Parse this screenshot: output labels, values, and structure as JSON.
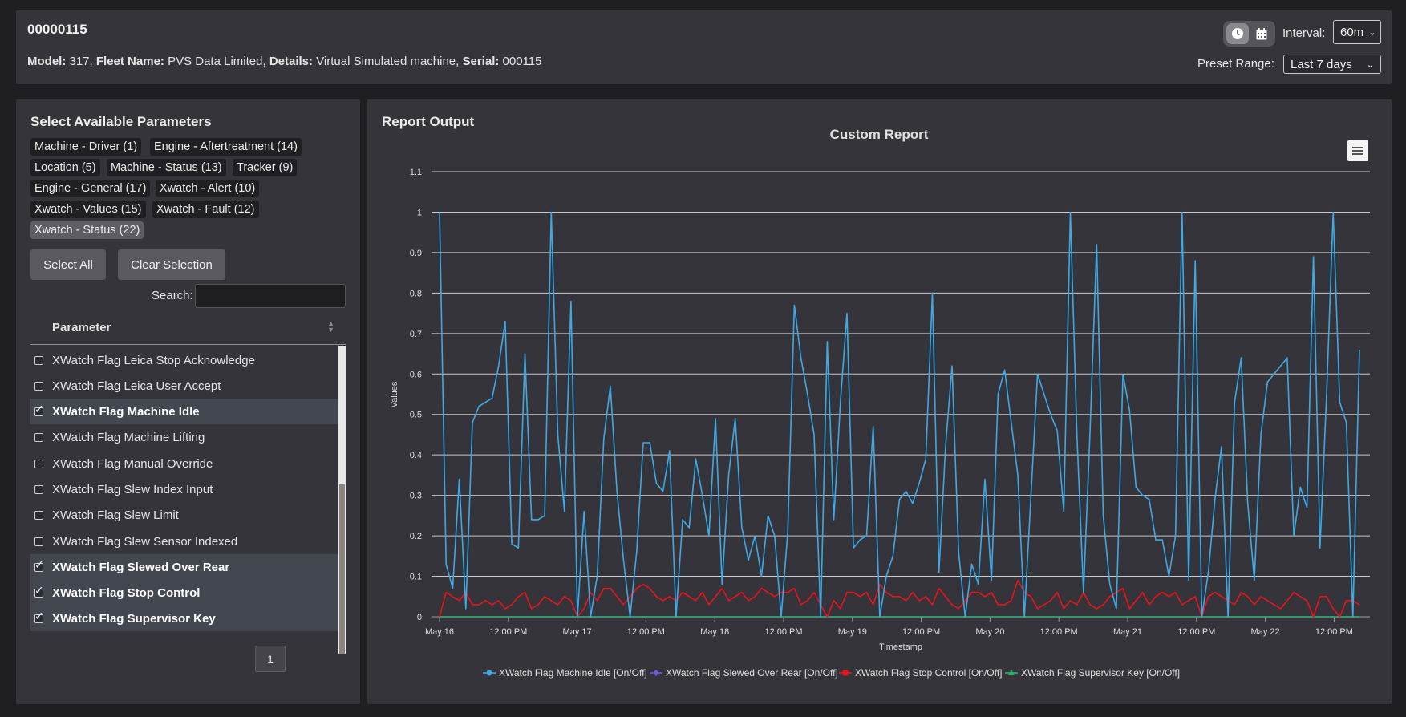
{
  "header": {
    "machine_id": "00000115",
    "model_label": "Model:",
    "model_value": "317,",
    "fleet_label": "Fleet Name:",
    "fleet_value": "PVS Data Limited,",
    "details_label": "Details:",
    "details_value": "Virtual Simulated machine,",
    "serial_label": "Serial:",
    "serial_value": "000115",
    "interval_label": "Interval:",
    "interval_value": "60m",
    "preset_label": "Preset Range:",
    "preset_value": "Last 7 days",
    "icons": [
      "clock-icon",
      "calendar-icon",
      "chevron-down-icon"
    ]
  },
  "params_panel": {
    "title": "Select Available Parameters",
    "categories": [
      {
        "label": "Machine - Driver (1)",
        "selected": false
      },
      {
        "label": "Engine - Aftertreatment (14)",
        "selected": false
      },
      {
        "label": "Location (5)",
        "selected": false
      },
      {
        "label": "Machine - Status (13)",
        "selected": false
      },
      {
        "label": "Tracker (9)",
        "selected": false
      },
      {
        "label": "Engine - General (17)",
        "selected": false
      },
      {
        "label": "Xwatch - Alert (10)",
        "selected": false
      },
      {
        "label": "Xwatch - Values (15)",
        "selected": false
      },
      {
        "label": "Xwatch - Fault (12)",
        "selected": false
      },
      {
        "label": "Xwatch - Status (22)",
        "selected": true
      }
    ],
    "select_all": "Select All",
    "clear_selection": "Clear Selection",
    "search_label": "Search:",
    "search_value": "",
    "column_header": "Parameter",
    "rows": [
      {
        "label": "XWatch Flag Leica Stop Acknowledge",
        "checked": false
      },
      {
        "label": "XWatch Flag Leica User Accept",
        "checked": false
      },
      {
        "label": "XWatch Flag Machine Idle",
        "checked": true
      },
      {
        "label": "XWatch Flag Machine Lifting",
        "checked": false
      },
      {
        "label": "XWatch Flag Manual Override",
        "checked": false
      },
      {
        "label": "XWatch Flag Slew Index Input",
        "checked": false
      },
      {
        "label": "XWatch Flag Slew Limit",
        "checked": false
      },
      {
        "label": "XWatch Flag Slew Sensor Indexed",
        "checked": false
      },
      {
        "label": "XWatch Flag Slewed Over Rear",
        "checked": true
      },
      {
        "label": "XWatch Flag Stop Control",
        "checked": true
      },
      {
        "label": "XWatch Flag Supervisor Key",
        "checked": true
      }
    ],
    "page": "1"
  },
  "report": {
    "title": "Report Output",
    "menu_icon": "hamburger-menu-icon"
  },
  "chart_data": {
    "type": "line",
    "title": "Custom Report",
    "xlabel": "Timestamp",
    "ylabel": "Values",
    "ylim": [
      0,
      1.1
    ],
    "yticks": [
      "0",
      "0.1",
      "0.2",
      "0.3",
      "0.4",
      "0.5",
      "0.6",
      "0.7",
      "0.8",
      "0.9",
      "1",
      "1.1"
    ],
    "xticks": [
      "May 16",
      "12:00 PM",
      "May 17",
      "12:00 PM",
      "May 18",
      "12:00 PM",
      "May 19",
      "12:00 PM",
      "May 20",
      "12:00 PM",
      "May 21",
      "12:00 PM",
      "May 22",
      "12:00 PM"
    ],
    "grid": true,
    "legend_position": "bottom",
    "series": [
      {
        "name": "XWatch Flag Machine Idle [On/Off]",
        "color": "#3fa9e6",
        "values": [
          1,
          0.13,
          0.07,
          0.34,
          0.02,
          0.48,
          0.52,
          0.53,
          0.54,
          0.62,
          0.73,
          0.18,
          0.17,
          0.65,
          0.24,
          0.24,
          0.25,
          1,
          0.45,
          0.26,
          0.78,
          0,
          0.26,
          0,
          0.1,
          0.44,
          0.57,
          0.31,
          0.14,
          0,
          0.16,
          0.43,
          0.43,
          0.33,
          0.31,
          0.41,
          0,
          0.24,
          0.22,
          0.39,
          0.3,
          0.2,
          0.49,
          0.08,
          0.35,
          0.49,
          0.22,
          0.14,
          0.2,
          0.1,
          0.25,
          0.2,
          0,
          0.21,
          0.77,
          0.64,
          0.55,
          0.45,
          0,
          0.68,
          0.24,
          0.53,
          0.75,
          0.17,
          0.19,
          0.2,
          0.47,
          0,
          0.1,
          0.15,
          0.29,
          0.31,
          0.28,
          0.33,
          0.39,
          0.8,
          0.11,
          0.42,
          0.62,
          0.16,
          0,
          0.13,
          0.08,
          0.34,
          0.09,
          0.55,
          0.61,
          0.48,
          0.35,
          0,
          0.3,
          0.6,
          0.55,
          0.5,
          0.46,
          0.26,
          1,
          0.45,
          0.06,
          0.46,
          0.92,
          0.25,
          0.08,
          0.02,
          0.6,
          0.51,
          0.32,
          0.3,
          0.29,
          0.19,
          0.19,
          0.1,
          0.2,
          1,
          0.09,
          0.88,
          0,
          0.11,
          0.29,
          0.42,
          0,
          0.53,
          0.64,
          0.28,
          0.09,
          0.45,
          0.58,
          0.6,
          0.62,
          0.64,
          0.2,
          0.32,
          0.27,
          0.89,
          0.17,
          0.55,
          1,
          0.53,
          0.48,
          0,
          0.66
        ]
      },
      {
        "name": "XWatch Flag Slewed Over Rear [On/Off]",
        "color": "#6f5bd6",
        "values": [
          0,
          0,
          0,
          0,
          0,
          0,
          0,
          0,
          0,
          0,
          0,
          0,
          0,
          0,
          0,
          0
        ]
      },
      {
        "name": "XWatch Flag Stop Control [On/Off]",
        "color": "#e8141c",
        "values": [
          0,
          0.06,
          0.05,
          0.04,
          0.06,
          0.03,
          0.03,
          0.04,
          0.03,
          0.04,
          0.02,
          0.03,
          0.05,
          0.06,
          0.02,
          0.03,
          0.05,
          0.04,
          0.03,
          0.05,
          0.04,
          0,
          0.02,
          0.06,
          0.04,
          0.07,
          0.07,
          0.05,
          0.03,
          0.05,
          0.07,
          0.08,
          0.07,
          0.05,
          0.04,
          0.05,
          0.04,
          0.06,
          0.05,
          0.04,
          0.06,
          0.03,
          0.05,
          0.07,
          0.04,
          0.05,
          0.06,
          0.04,
          0.05,
          0.07,
          0.06,
          0.05,
          0.06,
          0.06,
          0.07,
          0.03,
          0.04,
          0.06,
          0.03,
          0,
          0.04,
          0.02,
          0.06,
          0.06,
          0.05,
          0.06,
          0.03,
          0.08,
          0.06,
          0.05,
          0.05,
          0.04,
          0.06,
          0.04,
          0.05,
          0.03,
          0.07,
          0.05,
          0.03,
          0.02,
          0.04,
          0.06,
          0.06,
          0.05,
          0.06,
          0.03,
          0.03,
          0.04,
          0.09,
          0.06,
          0.05,
          0.02,
          0.03,
          0.04,
          0.06,
          0.02,
          0.04,
          0.03,
          0.06,
          0.03,
          0.02,
          0.03,
          0.05,
          0.06,
          0.07,
          0.02,
          0.04,
          0.06,
          0.03,
          0.05,
          0.06,
          0.05,
          0.06,
          0.03,
          0.04,
          0.05,
          0,
          0.05,
          0.06,
          0.05,
          0.04,
          0.03,
          0.06,
          0.05,
          0.03,
          0.05,
          0.04,
          0.03,
          0.02,
          0.04,
          0.06,
          0.05,
          0.04,
          0,
          0.05,
          0.05,
          0.02,
          0,
          0.04,
          0.04,
          0.03
        ]
      },
      {
        "name": "XWatch Flag Supervisor Key [On/Off]",
        "color": "#27b36b",
        "values": [
          0,
          0,
          0,
          0,
          0,
          0,
          0,
          0,
          0,
          0,
          0,
          0,
          0,
          0,
          0,
          0
        ]
      }
    ]
  }
}
